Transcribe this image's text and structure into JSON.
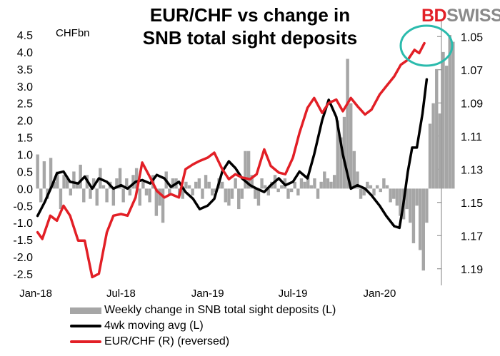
{
  "title_line1": "EUR/CHF vs change in",
  "title_line2": "SNB total sight deposits",
  "logo": {
    "part1": "BD",
    "part2": "SWISS",
    "part3": "®"
  },
  "left_unit": "CHFbn",
  "colors": {
    "bars": "#a6a6a6",
    "moving_avg": "#000000",
    "eurchf": "#e21f26",
    "highlight_circle": "#2bbbad"
  },
  "chart_data": {
    "type": "bar+line",
    "x_tick_labels": [
      "Jan-18",
      "Jul-18",
      "Jan-19",
      "Jul-19",
      "Jan-20"
    ],
    "x_range": [
      "2018-01",
      "2020-04"
    ],
    "left_axis": {
      "ticks": [
        "4.5",
        "4.0",
        "3.5",
        "3.0",
        "2.5",
        "2.0",
        "1.5",
        "1.0",
        "0.5",
        "0.0",
        "-0.5",
        "-1.0",
        "-1.5",
        "-2.0",
        "-2.5"
      ],
      "range": [
        -2.5,
        4.5
      ]
    },
    "right_axis": {
      "ticks": [
        "1.05",
        "1.07",
        "1.09",
        "1.11",
        "1.13",
        "1.15",
        "1.17",
        "1.19"
      ],
      "range": [
        1.04,
        1.2
      ],
      "reversed": true
    },
    "series": [
      {
        "name": "Weekly change in SNB total sight deposits (L)",
        "kind": "bar",
        "axis": "left",
        "start": "2018-01-05",
        "interval_days": 7,
        "values": [
          1.0,
          -0.4,
          0.8,
          -0.3,
          0.9,
          0.2,
          0.5,
          -0.6,
          0.4,
          0.3,
          -0.2,
          0.5,
          0.2,
          0.7,
          -0.4,
          0.4,
          -0.3,
          0.3,
          -0.5,
          0.6,
          0.1,
          -0.4,
          0.2,
          -0.5,
          0.3,
          0.6,
          -0.4,
          0.3,
          -0.2,
          0.4,
          0.6,
          -0.5,
          0.2,
          -0.2,
          -0.4,
          0.4,
          -0.8,
          -0.5,
          -1.0,
          0.5,
          -0.2,
          0.3,
          0.3,
          -0.2,
          -0.3,
          0.2,
          0.1,
          -0.2,
          0.2,
          0.3,
          -0.3,
          0.4,
          0.2,
          -0.2,
          -0.1,
          0.3,
          0.2,
          -0.4,
          -0.5,
          -0.3,
          0.3,
          -0.6,
          -0.3,
          1.1,
          1.1,
          0.4,
          -0.3,
          -0.5,
          0.3,
          0.1,
          -0.2,
          0.2,
          0.4,
          -0.1,
          0.1,
          0.3,
          -0.3,
          -0.1,
          0.2,
          -0.2,
          0.3,
          0.2,
          0.4,
          0.1,
          0.3,
          -0.3,
          0.2,
          0.5,
          0.3,
          0.2,
          0.4,
          2.0,
          1.5,
          2.1,
          3.8,
          2.5,
          1.1,
          0.5,
          -0.3,
          -0.2,
          0.2,
          0.1,
          -0.2,
          0.1,
          -0.1,
          0.3,
          0.1,
          -0.4,
          -0.3,
          -0.5,
          -0.8,
          -0.9,
          -0.6,
          -1.0,
          -1.6,
          -0.5,
          -1.8,
          -2.4,
          -1.0,
          1.9,
          2.5,
          3.5,
          2.2,
          4.0,
          3.6,
          4.5,
          4.3
        ]
      },
      {
        "name": "4wk moving avg (L)",
        "kind": "line",
        "axis": "left",
        "points": [
          [
            "2018-01-05",
            -0.8
          ],
          [
            "2018-01-20",
            -0.4
          ],
          [
            "2018-02-05",
            0.1
          ],
          [
            "2018-02-15",
            0.45
          ],
          [
            "2018-03-01",
            0.5
          ],
          [
            "2018-03-15",
            0.2
          ],
          [
            "2018-04-01",
            0.15
          ],
          [
            "2018-04-15",
            0.35
          ],
          [
            "2018-05-01",
            0.0
          ],
          [
            "2018-05-15",
            0.3
          ],
          [
            "2018-06-01",
            0.2
          ],
          [
            "2018-06-15",
            0.0
          ],
          [
            "2018-07-01",
            0.1
          ],
          [
            "2018-07-15",
            0.0
          ],
          [
            "2018-08-01",
            0.2
          ],
          [
            "2018-08-15",
            0.25
          ],
          [
            "2018-09-01",
            0.15
          ],
          [
            "2018-09-15",
            0.4
          ],
          [
            "2018-10-01",
            0.3
          ],
          [
            "2018-10-15",
            0.05
          ],
          [
            "2018-11-01",
            0.2
          ],
          [
            "2018-11-15",
            -0.1
          ],
          [
            "2018-12-01",
            -0.3
          ],
          [
            "2018-12-15",
            -0.6
          ],
          [
            "2019-01-01",
            -0.5
          ],
          [
            "2019-01-15",
            -0.3
          ],
          [
            "2019-02-01",
            0.5
          ],
          [
            "2019-02-15",
            0.8
          ],
          [
            "2019-03-01",
            0.6
          ],
          [
            "2019-03-15",
            0.3
          ],
          [
            "2019-04-01",
            0.1
          ],
          [
            "2019-04-15",
            0.0
          ],
          [
            "2019-05-01",
            -0.1
          ],
          [
            "2019-05-15",
            0.1
          ],
          [
            "2019-06-01",
            0.3
          ],
          [
            "2019-06-15",
            0.1
          ],
          [
            "2019-07-01",
            0.2
          ],
          [
            "2019-07-15",
            0.5
          ],
          [
            "2019-08-01",
            0.3
          ],
          [
            "2019-08-15",
            1.0
          ],
          [
            "2019-09-01",
            2.0
          ],
          [
            "2019-09-15",
            2.6
          ],
          [
            "2019-10-01",
            2.1
          ],
          [
            "2019-10-15",
            1.0
          ],
          [
            "2019-11-01",
            0.0
          ],
          [
            "2019-11-15",
            0.1
          ],
          [
            "2019-12-01",
            0.0
          ],
          [
            "2019-12-15",
            -0.2
          ],
          [
            "2020-01-01",
            -0.5
          ],
          [
            "2020-01-15",
            -0.8
          ],
          [
            "2020-02-01",
            -1.1
          ],
          [
            "2020-02-12",
            -1.15
          ],
          [
            "2020-02-20",
            -0.5
          ],
          [
            "2020-03-01",
            0.5
          ],
          [
            "2020-03-10",
            1.2
          ],
          [
            "2020-03-20",
            1.2
          ],
          [
            "2020-04-01",
            2.2
          ],
          [
            "2020-04-10",
            3.2
          ]
        ]
      },
      {
        "name": "EUR/CHF (R) (reversed)",
        "kind": "line",
        "axis": "right",
        "points": [
          [
            "2018-01-05",
            1.168
          ],
          [
            "2018-01-15",
            1.172
          ],
          [
            "2018-02-01",
            1.158
          ],
          [
            "2018-02-15",
            1.161
          ],
          [
            "2018-03-01",
            1.152
          ],
          [
            "2018-03-15",
            1.158
          ],
          [
            "2018-04-01",
            1.173
          ],
          [
            "2018-04-15",
            1.173
          ],
          [
            "2018-05-01",
            1.195
          ],
          [
            "2018-05-15",
            1.193
          ],
          [
            "2018-06-01",
            1.168
          ],
          [
            "2018-06-15",
            1.158
          ],
          [
            "2018-07-01",
            1.157
          ],
          [
            "2018-07-15",
            1.158
          ],
          [
            "2018-08-01",
            1.147
          ],
          [
            "2018-08-15",
            1.126
          ],
          [
            "2018-09-01",
            1.135
          ],
          [
            "2018-09-15",
            1.143
          ],
          [
            "2018-10-01",
            1.147
          ],
          [
            "2018-10-15",
            1.145
          ],
          [
            "2018-11-01",
            1.147
          ],
          [
            "2018-11-15",
            1.13
          ],
          [
            "2018-12-01",
            1.127
          ],
          [
            "2018-12-15",
            1.125
          ],
          [
            "2019-01-01",
            1.123
          ],
          [
            "2019-01-15",
            1.12
          ],
          [
            "2019-02-01",
            1.13
          ],
          [
            "2019-02-15",
            1.136
          ],
          [
            "2019-03-01",
            1.133
          ],
          [
            "2019-03-15",
            1.135
          ],
          [
            "2019-04-01",
            1.136
          ],
          [
            "2019-04-15",
            1.133
          ],
          [
            "2019-05-01",
            1.118
          ],
          [
            "2019-05-15",
            1.128
          ],
          [
            "2019-06-01",
            1.132
          ],
          [
            "2019-06-15",
            1.133
          ],
          [
            "2019-07-01",
            1.123
          ],
          [
            "2019-07-15",
            1.108
          ],
          [
            "2019-08-01",
            1.093
          ],
          [
            "2019-08-15",
            1.087
          ],
          [
            "2019-09-01",
            1.096
          ],
          [
            "2019-09-15",
            1.09
          ],
          [
            "2019-10-01",
            1.088
          ],
          [
            "2019-10-15",
            1.095
          ],
          [
            "2019-11-01",
            1.087
          ],
          [
            "2019-11-15",
            1.092
          ],
          [
            "2019-12-01",
            1.097
          ],
          [
            "2019-12-15",
            1.094
          ],
          [
            "2020-01-01",
            1.085
          ],
          [
            "2020-01-15",
            1.08
          ],
          [
            "2020-02-01",
            1.074
          ],
          [
            "2020-02-15",
            1.067
          ],
          [
            "2020-03-01",
            1.064
          ],
          [
            "2020-03-15",
            1.058
          ],
          [
            "2020-03-25",
            1.06
          ],
          [
            "2020-04-05",
            1.054
          ]
        ]
      }
    ],
    "annotation": {
      "type": "circle",
      "around": "recent highs, right edge"
    },
    "legend": {
      "placement": "bottom",
      "entries": [
        "Weekly change in SNB total sight deposits (L)",
        "4wk moving avg (L)",
        "EUR/CHF (R) (reversed)"
      ]
    }
  }
}
